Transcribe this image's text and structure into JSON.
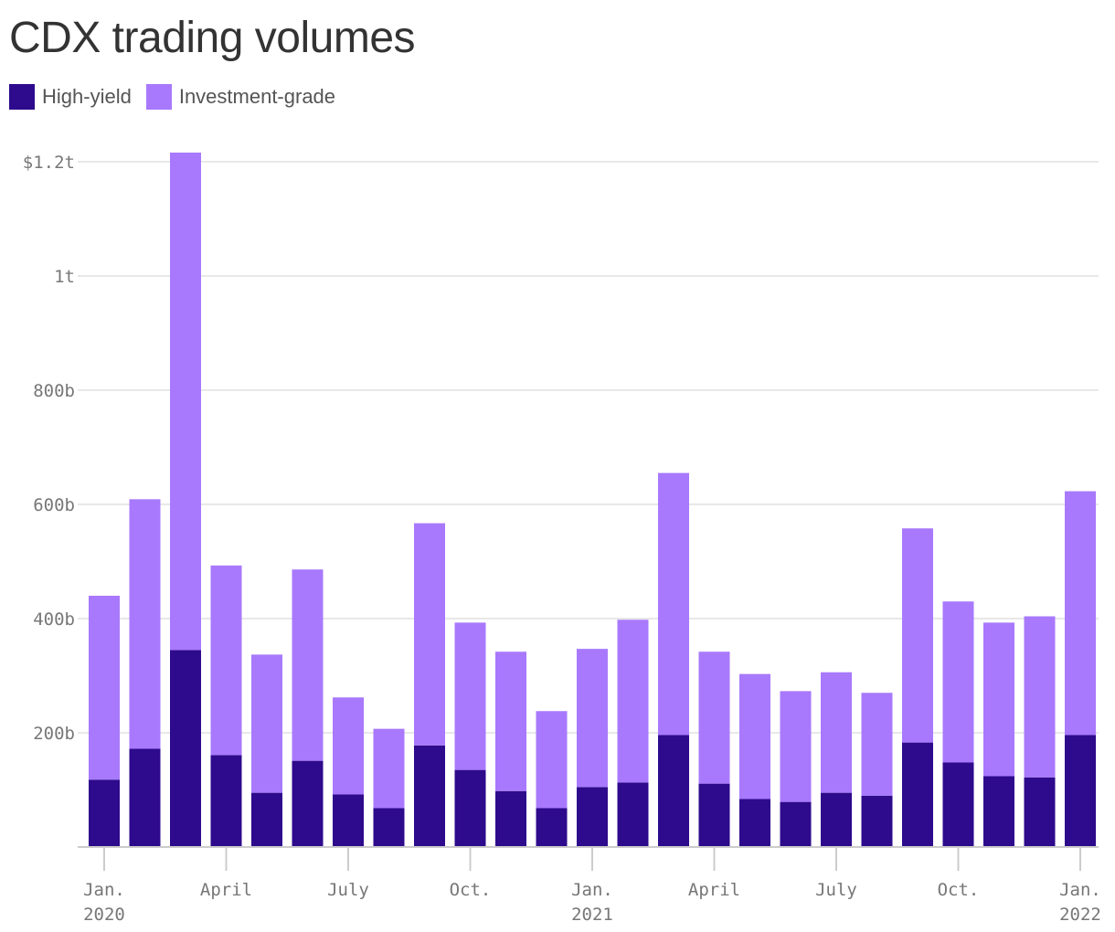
{
  "chart_data": {
    "type": "bar",
    "stacked": true,
    "title": "CDX trading volumes",
    "xlabel": "",
    "ylabel": "",
    "ylim": [
      0,
      1200
    ],
    "y_unit": "billions of dollars",
    "grid": true,
    "legend_position": "top-left",
    "y_ticks": [
      {
        "value": 200,
        "label": "200b"
      },
      {
        "value": 400,
        "label": "400b"
      },
      {
        "value": 600,
        "label": "600b"
      },
      {
        "value": 800,
        "label": "800b"
      },
      {
        "value": 1000,
        "label": "1t"
      },
      {
        "value": 1200,
        "label": "$1.2t"
      }
    ],
    "x_ticks": [
      {
        "index": 0,
        "line1": "Jan.",
        "line2": "2020"
      },
      {
        "index": 3,
        "line1": "April",
        "line2": ""
      },
      {
        "index": 6,
        "line1": "July",
        "line2": ""
      },
      {
        "index": 9,
        "line1": "Oct.",
        "line2": ""
      },
      {
        "index": 12,
        "line1": "Jan.",
        "line2": "2021"
      },
      {
        "index": 15,
        "line1": "April",
        "line2": ""
      },
      {
        "index": 18,
        "line1": "July",
        "line2": ""
      },
      {
        "index": 21,
        "line1": "Oct.",
        "line2": ""
      },
      {
        "index": 24,
        "line1": "Jan.",
        "line2": "2022"
      }
    ],
    "categories": [
      "2020-01",
      "2020-02",
      "2020-03",
      "2020-04",
      "2020-05",
      "2020-06",
      "2020-07",
      "2020-08",
      "2020-09",
      "2020-10",
      "2020-11",
      "2020-12",
      "2021-01",
      "2021-02",
      "2021-03",
      "2021-04",
      "2021-05",
      "2021-06",
      "2021-07",
      "2021-08",
      "2021-09",
      "2021-10",
      "2021-11",
      "2021-12",
      "2022-01"
    ],
    "series": [
      {
        "name": "High-yield",
        "color": "#2e0a8c",
        "values": [
          118,
          172,
          345,
          161,
          95,
          151,
          92,
          68,
          178,
          135,
          98,
          68,
          105,
          113,
          196,
          111,
          84,
          79,
          95,
          90,
          183,
          148,
          124,
          122,
          196
        ]
      },
      {
        "name": "Investment-grade",
        "color": "#a879fc",
        "values": [
          322,
          437,
          871,
          332,
          242,
          335,
          170,
          139,
          389,
          258,
          244,
          170,
          242,
          285,
          459,
          231,
          219,
          194,
          211,
          180,
          375,
          282,
          269,
          282,
          427
        ]
      }
    ]
  }
}
